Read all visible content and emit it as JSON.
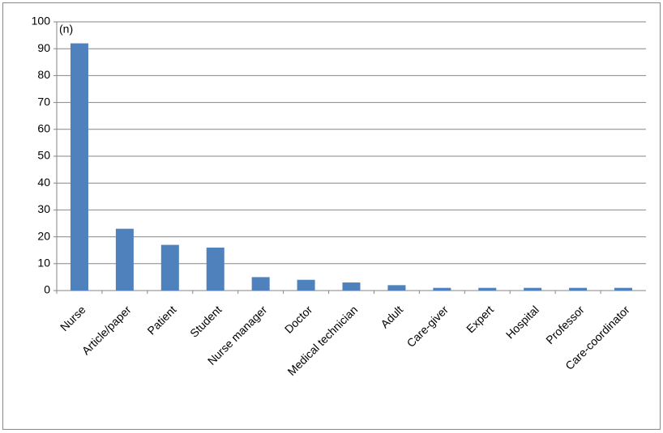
{
  "chart_data": {
    "type": "bar",
    "y_label": "(n)",
    "categories": [
      "Nurse",
      "Article/paper",
      "Patient",
      "Student",
      "Nurse manager",
      "Doctor",
      "Medical technician",
      "Adult",
      "Care-giver",
      "Expert",
      "Hospital",
      "Professor",
      "Care-coordinator"
    ],
    "values": [
      92,
      23,
      17,
      16,
      5,
      4,
      3,
      2,
      1,
      1,
      1,
      1,
      1
    ],
    "color": "#4f81bd",
    "ylim": [
      0,
      100
    ],
    "yticks": [
      0,
      10,
      20,
      30,
      40,
      50,
      60,
      70,
      80,
      90,
      100
    ],
    "grid": true
  }
}
